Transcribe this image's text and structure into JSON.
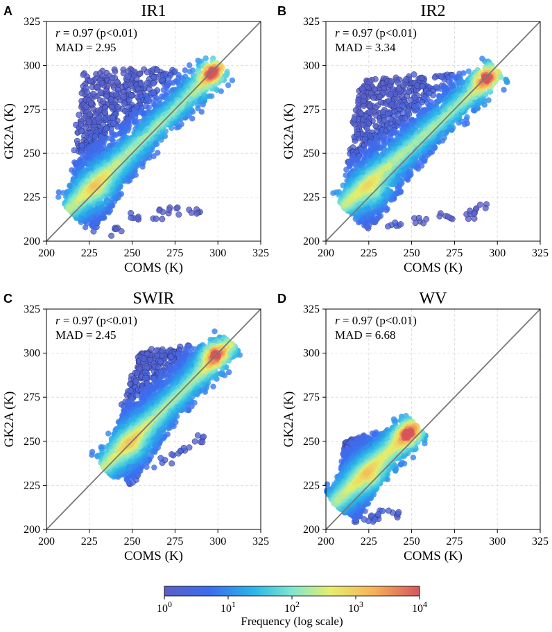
{
  "figure": {
    "colorbar": {
      "label": "Frequency (log scale)",
      "ticks": [
        "10^0",
        "10^1",
        "10^2",
        "10^3",
        "10^4"
      ],
      "scale": "log",
      "range": [
        1,
        10000
      ],
      "colors": [
        "#5b5fc7",
        "#3b6df0",
        "#29b6e8",
        "#7ee6d0",
        "#e6ee6a",
        "#f7b259",
        "#d6555a"
      ]
    }
  },
  "chart_data": [
    {
      "panel": "A",
      "type": "scatter",
      "title": "IR1",
      "xlabel": "COMS (K)",
      "ylabel": "GK2A (K)",
      "xlim": [
        200,
        325
      ],
      "ylim": [
        200,
        325
      ],
      "xticks": [
        200,
        225,
        250,
        275,
        300,
        325
      ],
      "yticks": [
        200,
        225,
        250,
        275,
        300,
        325
      ],
      "stat_r": "0.97",
      "stat_p": "(p<0.01)",
      "mad_label": "MAD = 2.95",
      "grid": true,
      "reference_line": "1:1",
      "cloud": {
        "corners": [
          [
            213,
            218
          ],
          [
            227,
            205
          ],
          [
            302,
            300
          ],
          [
            222,
            296
          ]
        ],
        "outliers_lower": [
          [
            240,
            205
          ],
          [
            250,
            214
          ],
          [
            265,
            215
          ],
          [
            275,
            218
          ],
          [
            287,
            218
          ]
        ],
        "peak": [
          296,
          296
        ],
        "secondary_peak": [
          230,
          230
        ]
      }
    },
    {
      "panel": "B",
      "type": "scatter",
      "title": "IR2",
      "xlabel": "COMS (K)",
      "ylabel": "GK2A (K)",
      "xlim": [
        200,
        325
      ],
      "ylim": [
        200,
        325
      ],
      "xticks": [
        200,
        225,
        250,
        275,
        300,
        325
      ],
      "yticks": [
        200,
        225,
        250,
        275,
        300,
        325
      ],
      "stat_r": "0.97",
      "stat_p": "(p<0.01)",
      "mad_label": "MAD = 3.34",
      "grid": true,
      "reference_line": "1:1",
      "cloud": {
        "corners": [
          [
            210,
            220
          ],
          [
            225,
            206
          ],
          [
            300,
            297
          ],
          [
            220,
            292
          ]
        ],
        "outliers_lower": [
          [
            240,
            210
          ],
          [
            255,
            212
          ],
          [
            270,
            215
          ],
          [
            285,
            215
          ],
          [
            290,
            218
          ]
        ],
        "peak": [
          293,
          293
        ],
        "secondary_peak": [
          228,
          228
        ]
      }
    },
    {
      "panel": "C",
      "type": "scatter",
      "title": "SWIR",
      "xlabel": "COMS (K)",
      "ylabel": "GK2A (K)",
      "xlim": [
        200,
        325
      ],
      "ylim": [
        200,
        325
      ],
      "xticks": [
        200,
        225,
        250,
        275,
        300,
        325
      ],
      "yticks": [
        200,
        225,
        250,
        275,
        300,
        325
      ],
      "stat_r": "0.97",
      "stat_p": "(p<0.01)",
      "mad_label": "MAD = 2.45",
      "grid": true,
      "reference_line": "1:1",
      "cloud": {
        "corners": [
          [
            233,
            235
          ],
          [
            250,
            226
          ],
          [
            308,
            306
          ],
          [
            255,
            301
          ]
        ],
        "outliers_lower": [
          [
            260,
            238
          ],
          [
            270,
            240
          ],
          [
            280,
            246
          ],
          [
            290,
            252
          ]
        ],
        "peak": [
          298,
          299
        ],
        "secondary_peak": [
          250,
          248
        ]
      }
    },
    {
      "panel": "D",
      "type": "scatter",
      "title": "WV",
      "xlabel": "COMS (K)",
      "ylabel": "GK2A (K)",
      "xlim": [
        200,
        325
      ],
      "ylim": [
        200,
        325
      ],
      "xticks": [
        200,
        225,
        250,
        275,
        300,
        325
      ],
      "yticks": [
        200,
        225,
        250,
        275,
        300,
        325
      ],
      "stat_r": "0.97",
      "stat_p": "(p<0.01)",
      "mad_label": "MAD = 6.68",
      "grid": true,
      "reference_line": "1:1",
      "cloud": {
        "corners": [
          [
            205,
            215
          ],
          [
            218,
            205
          ],
          [
            253,
            259
          ],
          [
            212,
            251
          ]
        ],
        "outliers_lower": [
          [
            225,
            206
          ],
          [
            232,
            208
          ],
          [
            240,
            208
          ]
        ],
        "peak": [
          248,
          254
        ],
        "secondary_peak": [
          226,
          230
        ]
      }
    }
  ]
}
